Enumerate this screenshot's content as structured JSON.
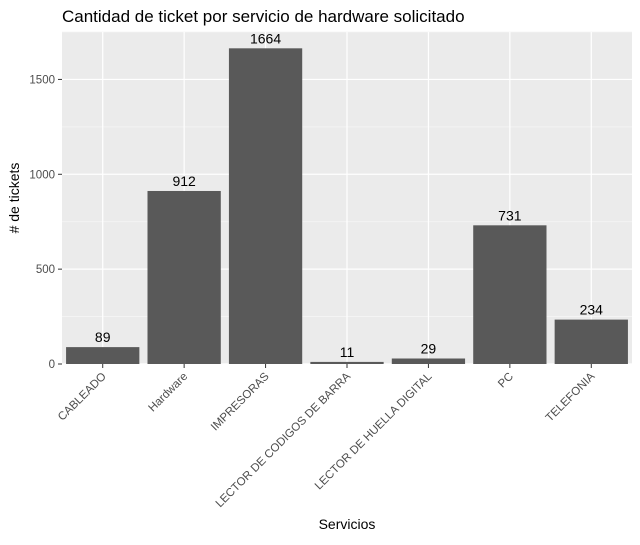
{
  "chart_data": {
    "type": "bar",
    "title": "Cantidad de ticket por servicio de hardware solicitado",
    "xlabel": "Servicios",
    "ylabel": "# de tickets",
    "categories": [
      "CABLEADO",
      "Hardware",
      "IMPRESORAS",
      "LECTOR DE CODIGOS DE BARRA",
      "LECTOR DE HUELLA DIGITAL",
      "PC",
      "TELEFONIA"
    ],
    "values": [
      89,
      912,
      1664,
      11,
      29,
      731,
      234
    ],
    "data_labels": [
      "89",
      "912",
      "1664",
      "11",
      "29",
      "731",
      "234"
    ],
    "y_ticks": [
      0,
      500,
      1000,
      1500
    ],
    "y_tick_labels": [
      "0",
      "500",
      "1000",
      "1500"
    ],
    "ylim": [
      0,
      1750
    ],
    "grid": true,
    "legend": "none",
    "colors": {
      "bar": "#595959",
      "panel_background": "#ebebeb",
      "grid_major": "#ffffff",
      "grid_minor": "#f5f5f5",
      "tick_text": "#4d4d4d"
    }
  }
}
